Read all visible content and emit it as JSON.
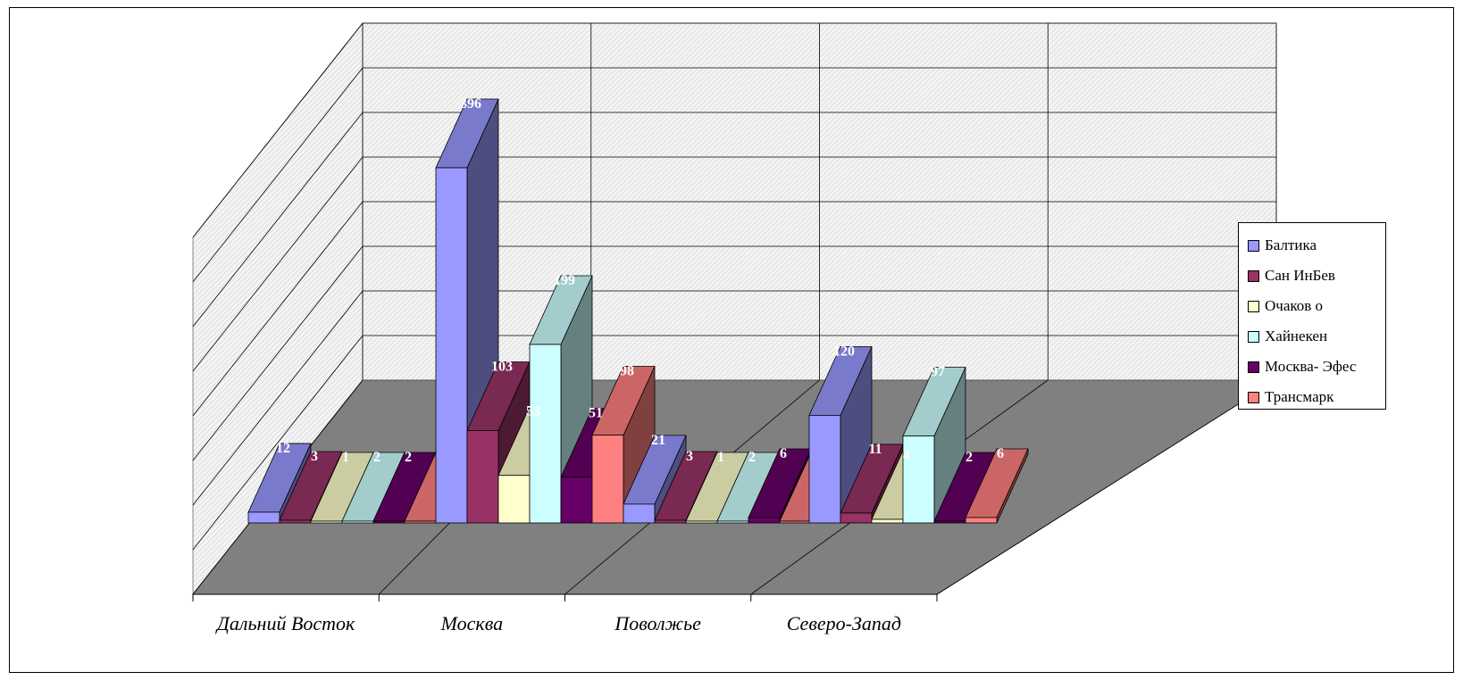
{
  "chart_data": {
    "type": "bar",
    "style": "3d-clustered-column",
    "title": "",
    "xlabel": "",
    "ylabel": "",
    "categories": [
      "Дальний Восток",
      "Москва",
      "Поволжье",
      "Северо-Запад"
    ],
    "series": [
      {
        "name": "Балтика",
        "color": "#9999ff",
        "values": [
          12,
          396,
          21,
          120
        ]
      },
      {
        "name": "Сан ИнБев",
        "color": "#993366",
        "values": [
          3,
          103,
          3,
          11
        ]
      },
      {
        "name": "Очаков о",
        "color": "#ffffcc",
        "values": [
          1,
          53,
          1,
          4
        ]
      },
      {
        "name": "Хайнекен",
        "color": "#ccffff",
        "values": [
          2,
          199,
          2,
          97
        ]
      },
      {
        "name": "Москва- Эфес",
        "color": "#660066",
        "values": [
          2,
          51,
          6,
          2
        ]
      },
      {
        "name": "Трансмарк",
        "color": "#ff8080",
        "values": [
          1,
          98,
          1,
          6
        ]
      }
    ],
    "data_labels": [
      [
        "12",
        "3",
        "1",
        "2",
        "2",
        ""
      ],
      [
        "396",
        "103",
        "53",
        "199",
        "51",
        "98"
      ],
      [
        "21",
        "3",
        "1",
        "2",
        "6",
        ""
      ],
      [
        "120",
        "11",
        "4",
        "97",
        "2",
        "6"
      ]
    ],
    "ylim": [
      0,
      500
    ],
    "grid": true,
    "legend": "right"
  }
}
